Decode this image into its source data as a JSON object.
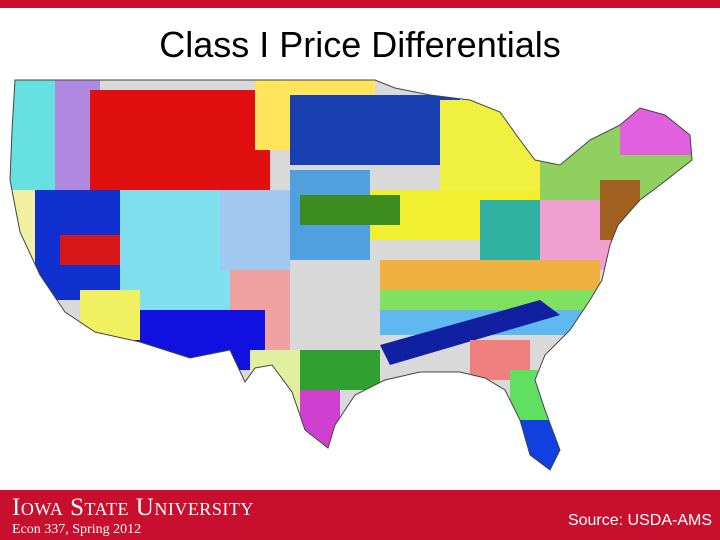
{
  "title": "Class I Price Differentials",
  "footer": {
    "university": "Iowa State University",
    "course": "Econ 337, Spring 2012",
    "source": "Source: USDA-AMS"
  }
}
